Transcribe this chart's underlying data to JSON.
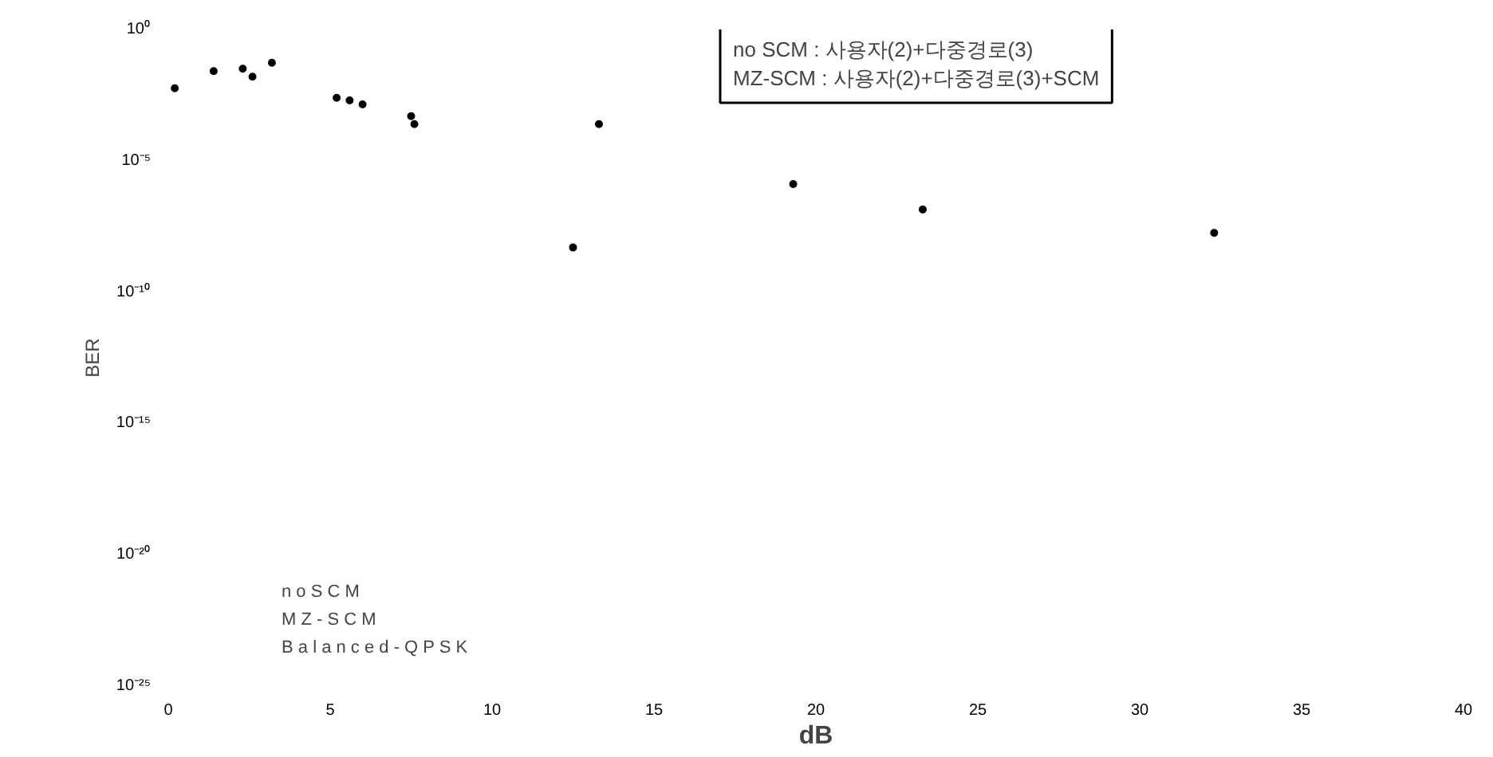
{
  "chart_data": {
    "type": "scatter",
    "xlabel": "dB",
    "ylabel": "BER",
    "log": "y",
    "grid": false,
    "marker": "circle",
    "xlim": [
      0,
      40
    ],
    "xticks": [
      0,
      5,
      10,
      15,
      20,
      25,
      30,
      35,
      40
    ],
    "ylim": [
      1e-25,
      1
    ],
    "yticks": [
      {
        "value": 1,
        "label": "10⁰"
      },
      {
        "value": 1e-05,
        "label": "10⁻⁵"
      },
      {
        "value": 1e-10,
        "label": "10⁻¹⁰"
      },
      {
        "value": 1e-15,
        "label": "10⁻¹⁵"
      },
      {
        "value": 1e-20,
        "label": "10⁻²⁰"
      },
      {
        "value": 1e-25,
        "label": "10⁻²⁵"
      }
    ],
    "annotations": [
      "no SCM : 사용자(2)+다중경로(3)",
      "MZ-SCM : 사용자(2)+다중경로(3)+SCM",
      "n o  S C M",
      "M Z - S C M",
      "B a l a n c e d - Q P S K"
    ],
    "series": [
      {
        "color": "#000000",
        "x": [
          0.2,
          1.4,
          2.3,
          2.6,
          3.2,
          5.2,
          5.6,
          6.0,
          7.5,
          7.6,
          12.5,
          13.3,
          19.3,
          23.3,
          32.3
        ],
        "values": [
          0.0058,
          0.026,
          0.032,
          0.016,
          0.054,
          0.0025,
          0.002,
          0.0014,
          0.0005,
          0.00025,
          5e-09,
          0.00025,
          1.3e-06,
          1.4e-07,
          1.8e-08
        ]
      }
    ]
  }
}
